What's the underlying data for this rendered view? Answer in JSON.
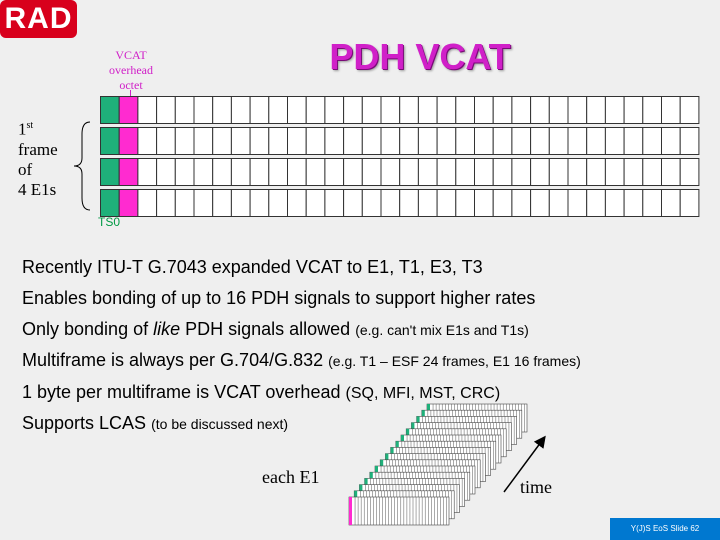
{
  "logo": {
    "text": "RAD"
  },
  "slide": {
    "title": "PDH VCAT"
  },
  "diagram": {
    "overhead_label": [
      "VCAT",
      "overhead",
      "octet"
    ],
    "frame_label": {
      "ord": "1",
      "sup": "st",
      "l2": "frame",
      "l3": "of",
      "l4": "4  E1s"
    },
    "ts0_label": "TS0",
    "rows": 4,
    "columns": 32,
    "colors": {
      "ts0": "#1fb07a",
      "overhead": "#ff2bd0",
      "border": "#333333",
      "cell": "#ffffff"
    }
  },
  "bullets": [
    {
      "main": "Recently ITU-T G.7043 expanded VCAT to E1, T1, E3, T3",
      "note": ""
    },
    {
      "main": "Enables bonding of up to 16 PDH signals to support higher rates",
      "note": ""
    },
    {
      "main_pre": "Only bonding of ",
      "main_em": "like",
      "main_post": " PDH signals allowed",
      "note": "(e.g. can't mix E1s and T1s)"
    },
    {
      "main": "Multiframe is always per G.704/G.832",
      "note": "(e.g. T1 – ESF 24 frames, E1 16 frames)"
    },
    {
      "main": "1 byte per multiframe is VCAT overhead",
      "note": "(SQ, MFI, MST, CRC)"
    },
    {
      "main": "Supports LCAS",
      "note": "(to be discussed next)"
    }
  ],
  "stack": {
    "each_label": "each E1",
    "time_label": "time",
    "layers": 16
  },
  "footer": {
    "text": "Y(J)S EoS  Slide 62"
  }
}
